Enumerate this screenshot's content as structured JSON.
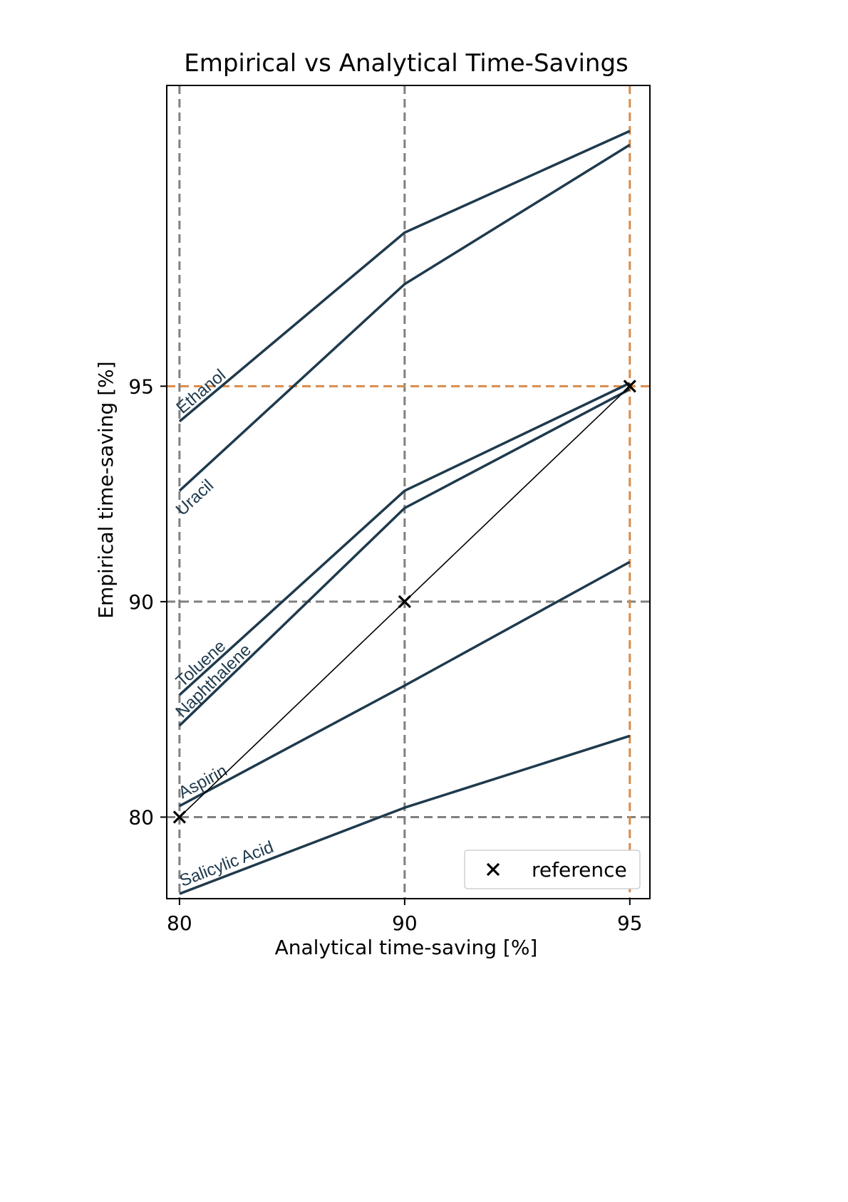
{
  "chart_data": {
    "type": "line",
    "title": "Empirical vs Analytical Time-Savings",
    "xlabel": "Analytical time-saving [%]",
    "ylabel": "Empirical time-saving [%]",
    "xscale": "-log10(100 - x)",
    "yscale": "-log10(100 - y)",
    "xlim": [
      79.2,
      95.3
    ],
    "ylim": [
      74.0,
      98.1
    ],
    "xticks": [
      80,
      90,
      95
    ],
    "yticks": [
      80,
      90,
      95
    ],
    "grid": {
      "gray_lines_x": [
        80,
        90
      ],
      "gray_lines_y": [
        80,
        90
      ],
      "orange_lines_x": [
        95
      ],
      "orange_lines_y": [
        95
      ],
      "style": "dashed"
    },
    "x": [
      80,
      90,
      95
    ],
    "series": [
      {
        "name": "Ethanol",
        "values": [
          94.4,
          96.95,
          97.8
        ]
      },
      {
        "name": "Uracil",
        "values": [
          93.0,
          96.4,
          97.7
        ]
      },
      {
        "name": "Toluene",
        "values": [
          86.5,
          93.0,
          95.05
        ]
      },
      {
        "name": "Naphthalene",
        "values": [
          85.1,
          92.6,
          94.95
        ]
      },
      {
        "name": "Aspirin",
        "values": [
          80.7,
          86.9,
          91.2
        ]
      },
      {
        "name": "Salicylic Acid",
        "values": [
          74.4,
          80.6,
          84.6
        ]
      }
    ],
    "reference": {
      "name": "reference",
      "x": [
        80,
        90,
        95
      ],
      "y": [
        80,
        90,
        95
      ]
    },
    "legend": {
      "position": "lower-right",
      "entries": [
        "reference"
      ]
    },
    "colors": {
      "series": "#1f3a4d",
      "reference": "#000000",
      "grid_gray": "#808080",
      "grid_orange": "#d98b4a"
    }
  }
}
